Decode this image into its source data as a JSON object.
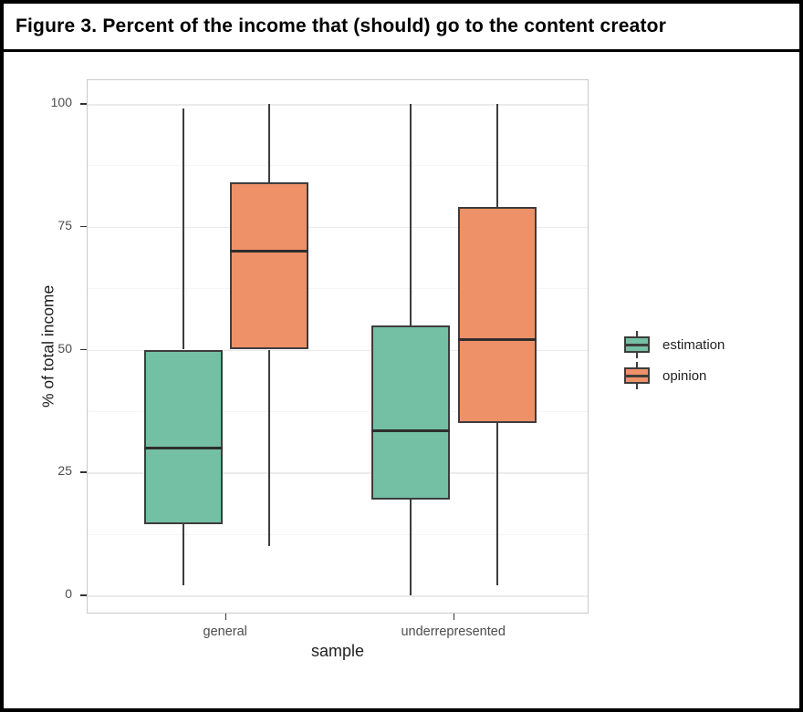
{
  "chart_data": {
    "type": "boxplot",
    "title": "Figure 3. Percent of the income that (should) go to the content creator",
    "xlabel": "sample",
    "ylabel": "% of total income",
    "ylim": [
      0,
      100
    ],
    "y_ticks": [
      0,
      25,
      50,
      75,
      100
    ],
    "y_minor_gridlines": [
      12.5,
      37.5,
      62.5,
      87.5
    ],
    "categories": [
      "general",
      "underrepresented"
    ],
    "legend_position": "right",
    "grid": "on",
    "series": [
      {
        "name": "estimation",
        "fill_color": "#74c0a4",
        "boxes": [
          {
            "category": "general",
            "whisker_low": 2,
            "q1": 14.5,
            "median": 30,
            "q3": 50,
            "whisker_high": 99
          },
          {
            "category": "underrepresented",
            "whisker_low": 0,
            "q1": 19.5,
            "median": 33.5,
            "q3": 55,
            "whisker_high": 100
          }
        ]
      },
      {
        "name": "opinion",
        "fill_color": "#ee9168",
        "boxes": [
          {
            "category": "general",
            "whisker_low": 10,
            "q1": 50,
            "median": 70,
            "q3": 84,
            "whisker_high": 100
          },
          {
            "category": "underrepresented",
            "whisker_low": 2,
            "q1": 35,
            "median": 52,
            "q3": 79,
            "whisker_high": 100
          }
        ]
      }
    ],
    "style": {
      "stroke_color": "#3d3d3d",
      "grid_major_color": "#ebebeb",
      "grid_minor_color": "#f5f5f5",
      "panel_border_color": "#c9c9c9",
      "tick_label_color": "#4d4d4d",
      "axis_title_color": "#1f1f1f"
    }
  }
}
